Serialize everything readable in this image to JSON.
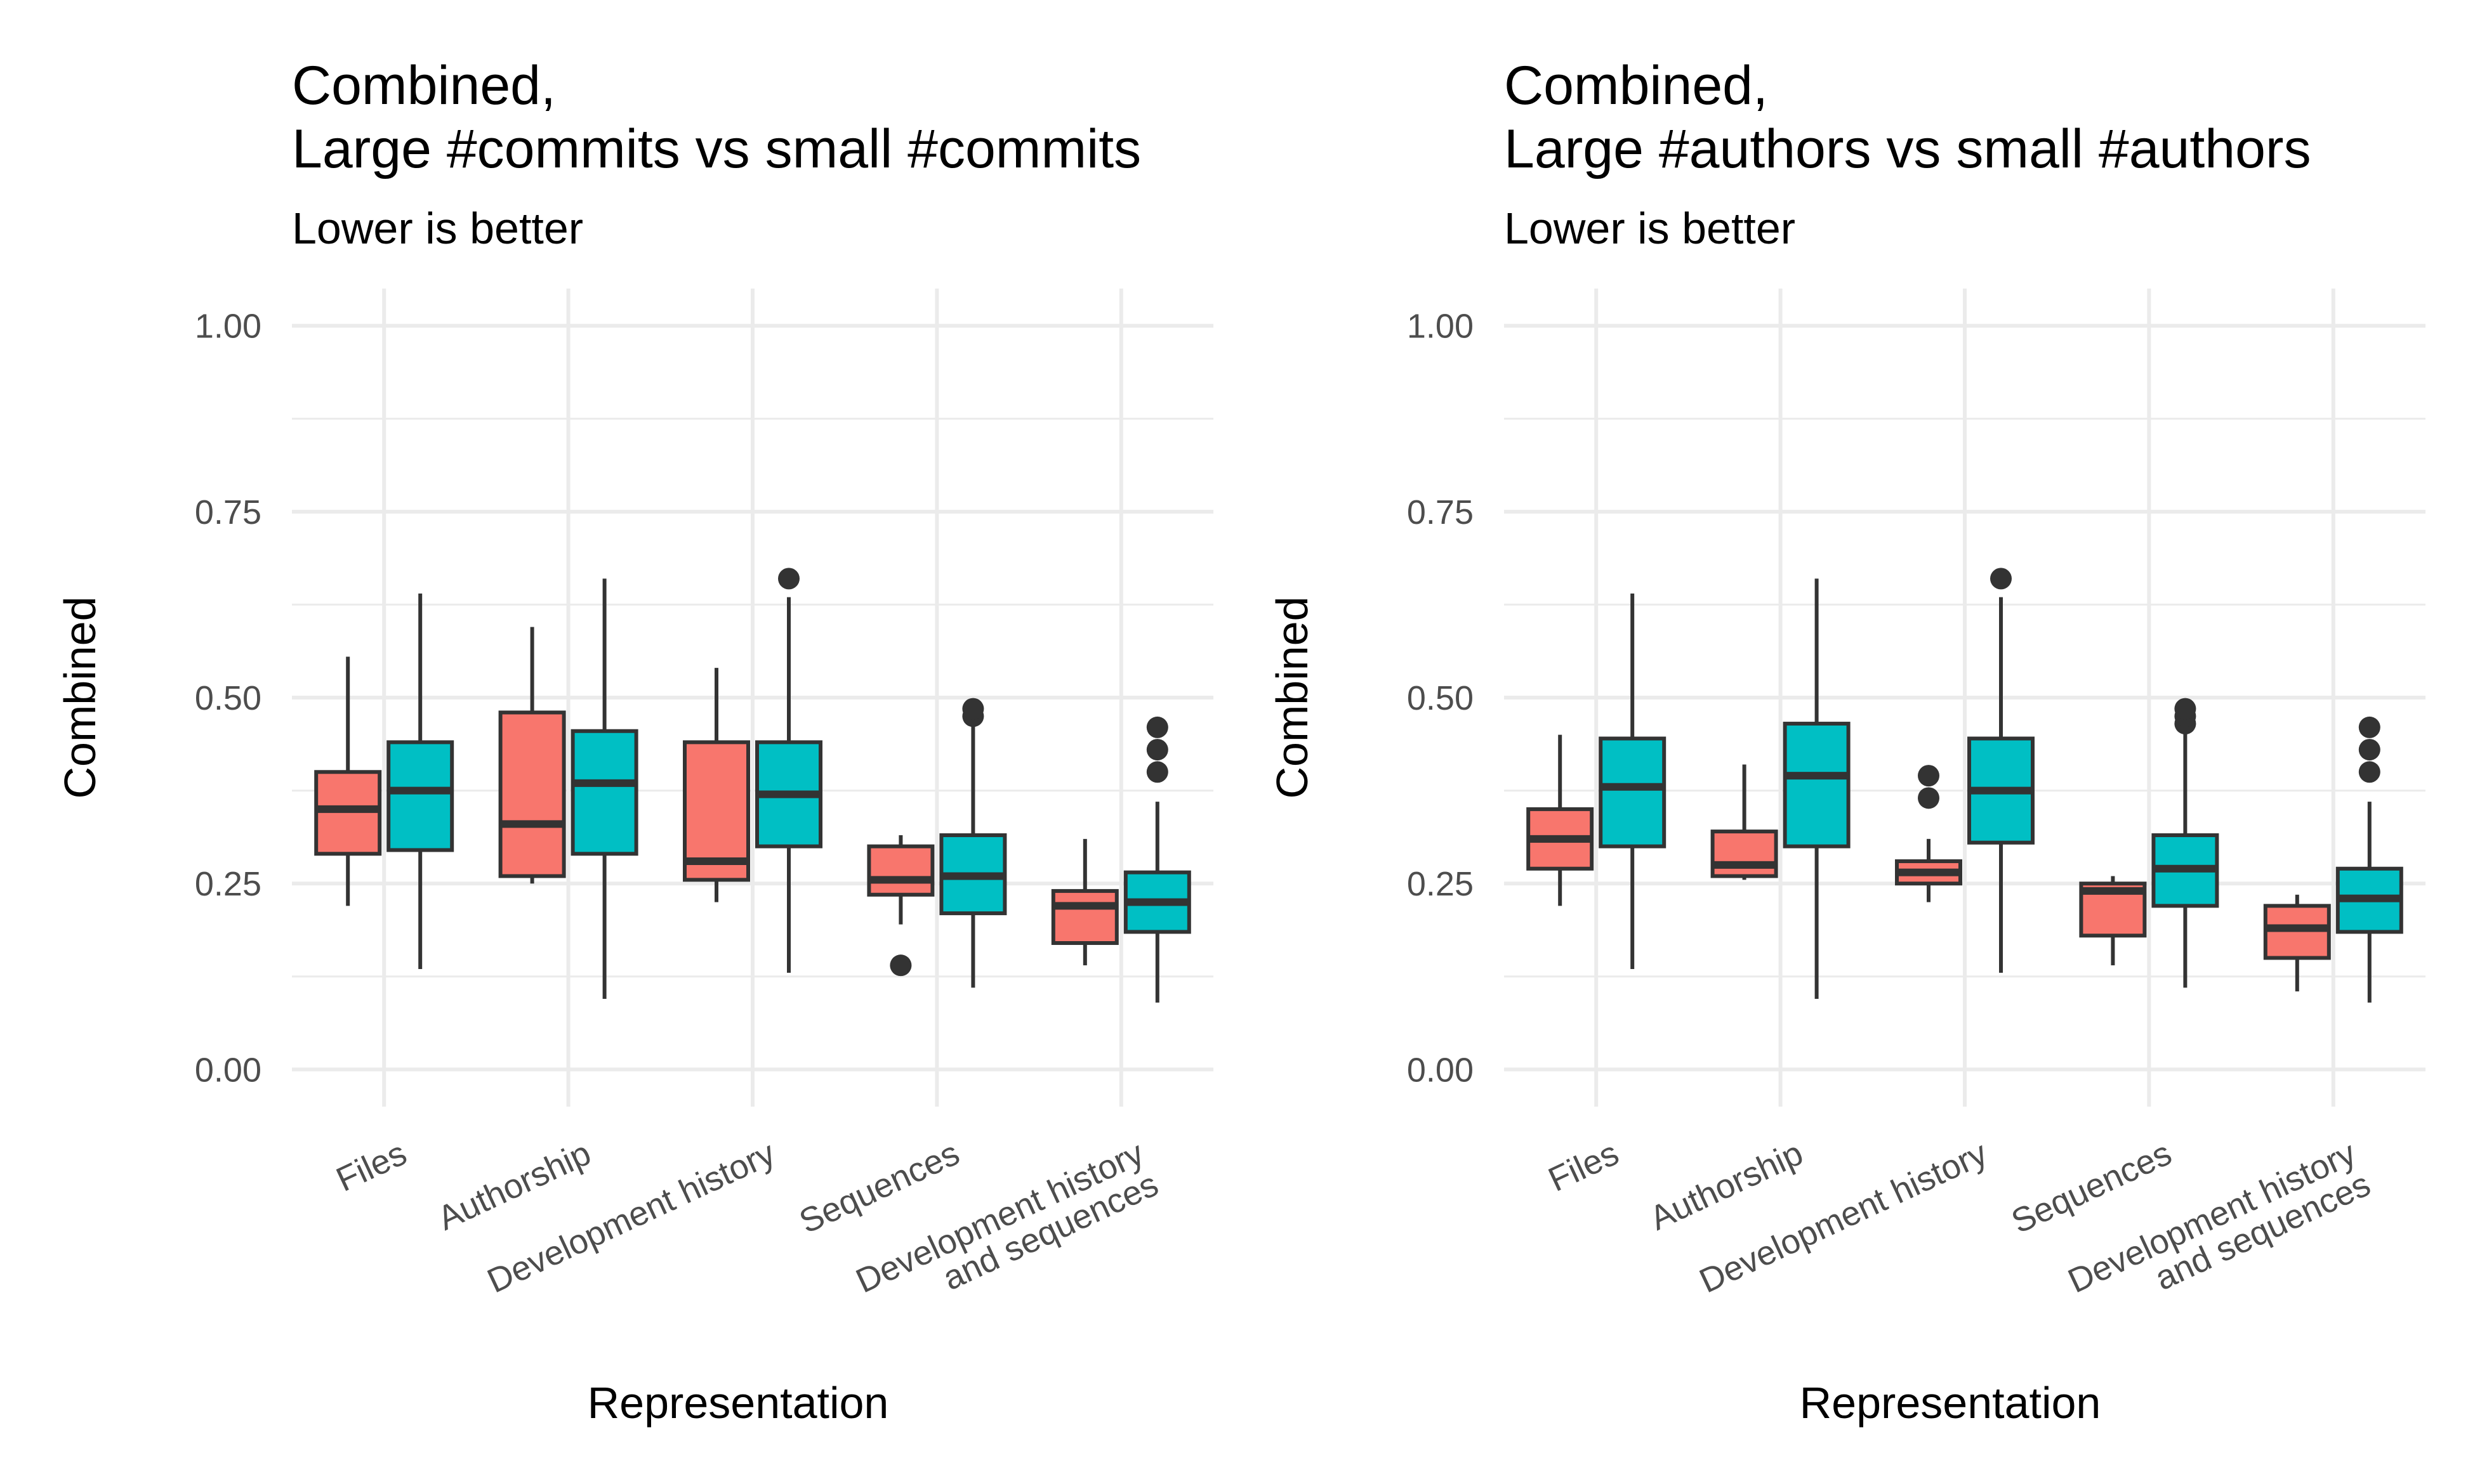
{
  "colors": {
    "group_a": "#F8766D",
    "group_b": "#00BFC4",
    "stroke": "#333333",
    "grid": "#ebebeb"
  },
  "chart_data": [
    {
      "type": "boxplot",
      "title_lines": [
        "Combined,",
        "Large #commits vs small #commits"
      ],
      "subtitle": "Lower is better",
      "xlabel": "Representation",
      "ylabel": "Combined",
      "ylim": [
        -0.05,
        1.05
      ],
      "yticks": [
        "0.00",
        "0.25",
        "0.50",
        "0.75",
        "1.00"
      ],
      "categories": [
        [
          "Files"
        ],
        [
          "Authorship"
        ],
        [
          "Development history"
        ],
        [
          "Sequences"
        ],
        [
          "Development history",
          "and sequences"
        ]
      ],
      "series": [
        {
          "name": "group_a",
          "boxes": [
            {
              "min": 0.22,
              "q1": 0.29,
              "median": 0.35,
              "q3": 0.4,
              "max": 0.555,
              "outliers": []
            },
            {
              "min": 0.25,
              "q1": 0.26,
              "median": 0.33,
              "q3": 0.48,
              "max": 0.595,
              "outliers": []
            },
            {
              "min": 0.225,
              "q1": 0.255,
              "median": 0.28,
              "q3": 0.44,
              "max": 0.54,
              "outliers": []
            },
            {
              "min": 0.195,
              "q1": 0.235,
              "median": 0.255,
              "q3": 0.3,
              "max": 0.315,
              "outliers": [
                0.14
              ]
            },
            {
              "min": 0.14,
              "q1": 0.17,
              "median": 0.22,
              "q3": 0.24,
              "max": 0.31,
              "outliers": []
            }
          ]
        },
        {
          "name": "group_b",
          "boxes": [
            {
              "min": 0.135,
              "q1": 0.295,
              "median": 0.375,
              "q3": 0.44,
              "max": 0.64,
              "outliers": []
            },
            {
              "min": 0.095,
              "q1": 0.29,
              "median": 0.385,
              "q3": 0.455,
              "max": 0.66,
              "outliers": []
            },
            {
              "min": 0.13,
              "q1": 0.3,
              "median": 0.37,
              "q3": 0.44,
              "max": 0.635,
              "outliers": [
                0.66
              ]
            },
            {
              "min": 0.11,
              "q1": 0.21,
              "median": 0.26,
              "q3": 0.315,
              "max": 0.47,
              "outliers": [
                0.475,
                0.485
              ]
            },
            {
              "min": 0.09,
              "q1": 0.185,
              "median": 0.225,
              "q3": 0.265,
              "max": 0.36,
              "outliers": [
                0.4,
                0.43,
                0.46
              ]
            }
          ]
        }
      ]
    },
    {
      "type": "boxplot",
      "title_lines": [
        "Combined,",
        "Large #authors vs small #authors"
      ],
      "subtitle": "Lower is better",
      "xlabel": "Representation",
      "ylabel": "Combined",
      "ylim": [
        -0.05,
        1.05
      ],
      "yticks": [
        "0.00",
        "0.25",
        "0.50",
        "0.75",
        "1.00"
      ],
      "categories": [
        [
          "Files"
        ],
        [
          "Authorship"
        ],
        [
          "Development history"
        ],
        [
          "Sequences"
        ],
        [
          "Development history",
          "and sequences"
        ]
      ],
      "series": [
        {
          "name": "group_a",
          "boxes": [
            {
              "min": 0.22,
              "q1": 0.27,
              "median": 0.31,
              "q3": 0.35,
              "max": 0.45,
              "outliers": []
            },
            {
              "min": 0.255,
              "q1": 0.26,
              "median": 0.275,
              "q3": 0.32,
              "max": 0.41,
              "outliers": []
            },
            {
              "min": 0.225,
              "q1": 0.25,
              "median": 0.265,
              "q3": 0.28,
              "max": 0.31,
              "outliers": [
                0.365,
                0.395
              ]
            },
            {
              "min": 0.14,
              "q1": 0.18,
              "median": 0.24,
              "q3": 0.25,
              "max": 0.26,
              "outliers": []
            },
            {
              "min": 0.105,
              "q1": 0.15,
              "median": 0.19,
              "q3": 0.22,
              "max": 0.235,
              "outliers": []
            }
          ]
        },
        {
          "name": "group_b",
          "boxes": [
            {
              "min": 0.135,
              "q1": 0.3,
              "median": 0.38,
              "q3": 0.445,
              "max": 0.64,
              "outliers": []
            },
            {
              "min": 0.095,
              "q1": 0.3,
              "median": 0.395,
              "q3": 0.465,
              "max": 0.66,
              "outliers": []
            },
            {
              "min": 0.13,
              "q1": 0.305,
              "median": 0.375,
              "q3": 0.445,
              "max": 0.635,
              "outliers": [
                0.66
              ]
            },
            {
              "min": 0.11,
              "q1": 0.22,
              "median": 0.27,
              "q3": 0.315,
              "max": 0.46,
              "outliers": [
                0.465,
                0.475,
                0.485
              ]
            },
            {
              "min": 0.09,
              "q1": 0.185,
              "median": 0.23,
              "q3": 0.27,
              "max": 0.36,
              "outliers": [
                0.4,
                0.43,
                0.46
              ]
            }
          ]
        }
      ]
    }
  ]
}
